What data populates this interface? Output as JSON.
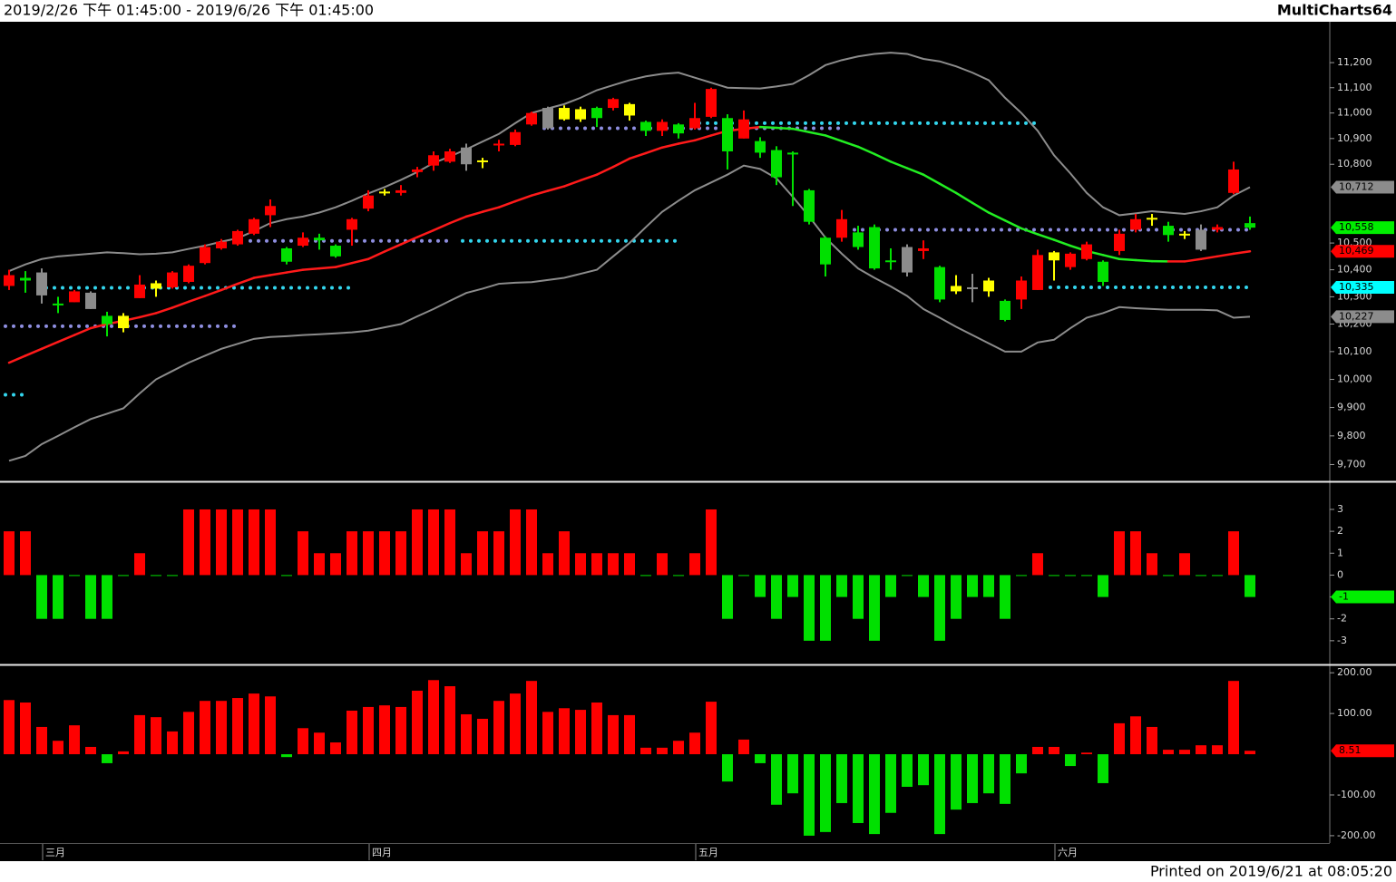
{
  "header": {
    "range": "2019/2/26 下午 01:45:00 - 2019/6/26 下午 01:45:00",
    "brand": "MultiCharts64"
  },
  "footer": "Printed on 2019/6/21 at 08:05:20",
  "chart_data": [
    {
      "type": "candlestick",
      "log_scale": true,
      "categories": [
        null,
        null,
        "三月",
        null,
        null,
        null,
        null,
        null,
        null,
        null,
        null,
        null,
        null,
        null,
        null,
        null,
        null,
        null,
        null,
        null,
        null,
        null,
        "四月",
        null,
        null,
        null,
        null,
        null,
        null,
        null,
        null,
        null,
        null,
        null,
        null,
        null,
        null,
        null,
        null,
        null,
        null,
        null,
        "五月",
        null,
        null,
        null,
        null,
        null,
        null,
        null,
        null,
        null,
        null,
        null,
        null,
        null,
        null,
        null,
        null,
        null,
        null,
        null,
        null,
        null,
        "六月",
        null,
        null,
        null,
        null,
        null,
        null,
        null,
        null,
        null,
        null,
        null,
        null
      ],
      "open": [
        10340,
        10370,
        10390,
        10270,
        10280,
        10315,
        10230,
        10185,
        10295,
        10330,
        10335,
        10355,
        10425,
        10480,
        10495,
        10535,
        10605,
        10480,
        10490,
        10520,
        10490,
        10550,
        10630,
        10690,
        10690,
        10770,
        10795,
        10810,
        10865,
        10810,
        10875,
        10875,
        10955,
        11020,
        10975,
        10975,
        11020,
        11020,
        10990,
        10965,
        10930,
        10955,
        10940,
        10985,
        10980,
        10900,
        10890,
        10855,
        10845,
        10700,
        10520,
        10520,
        10540,
        10560,
        10435,
        10390,
        10470,
        10410,
        10320,
        10335,
        10320,
        10285,
        10290,
        10325,
        10435,
        10410,
        10440,
        10430,
        10470,
        10550,
        10590,
        10565,
        10530,
        10550,
        10550,
        10690,
        10575
      ],
      "high": [
        10400,
        10395,
        10405,
        10300,
        10325,
        10320,
        10245,
        10240,
        10380,
        10360,
        10395,
        10420,
        10495,
        10515,
        10550,
        10595,
        10665,
        10485,
        10540,
        10535,
        10495,
        10595,
        10700,
        10705,
        10720,
        10790,
        10850,
        10860,
        10880,
        10825,
        10895,
        10935,
        11005,
        11025,
        11030,
        11025,
        11025,
        11060,
        11040,
        10970,
        10975,
        10960,
        11040,
        11100,
        10995,
        11010,
        10905,
        10870,
        10850,
        10705,
        10525,
        10625,
        10565,
        10570,
        10480,
        10495,
        10510,
        10415,
        10380,
        10385,
        10370,
        10290,
        10375,
        10475,
        10470,
        10465,
        10505,
        10435,
        10550,
        10610,
        10610,
        10580,
        10545,
        10570,
        10570,
        10810,
        10600
      ],
      "low": [
        10325,
        10315,
        10275,
        10240,
        10280,
        10255,
        10155,
        10170,
        10295,
        10300,
        10330,
        10350,
        10420,
        10475,
        10490,
        10530,
        10560,
        10420,
        10485,
        10475,
        10445,
        10490,
        10620,
        10680,
        10680,
        10750,
        10775,
        10805,
        10775,
        10785,
        10850,
        10870,
        10950,
        10935,
        10970,
        10965,
        10945,
        11010,
        10970,
        10910,
        10910,
        10900,
        10935,
        10980,
        10780,
        10900,
        10825,
        10720,
        10640,
        10570,
        10375,
        10505,
        10475,
        10400,
        10400,
        10375,
        10440,
        10280,
        10310,
        10280,
        10300,
        10210,
        10255,
        10325,
        10360,
        10400,
        10435,
        10340,
        10455,
        10540,
        10565,
        10505,
        10515,
        10470,
        10540,
        10685,
        10550
      ],
      "close": [
        10380,
        10360,
        10305,
        10275,
        10320,
        10255,
        10200,
        10230,
        10345,
        10350,
        10390,
        10415,
        10485,
        10505,
        10545,
        10590,
        10640,
        10430,
        10520,
        10510,
        10450,
        10590,
        10680,
        10695,
        10700,
        10780,
        10835,
        10850,
        10800,
        10815,
        10880,
        10925,
        11000,
        10940,
        11020,
        11015,
        10980,
        11055,
        11035,
        10930,
        10965,
        10920,
        10980,
        11095,
        10850,
        10975,
        10845,
        10750,
        10840,
        10580,
        10420,
        10590,
        10485,
        10405,
        10430,
        10485,
        10480,
        10290,
        10340,
        10330,
        10360,
        10215,
        10360,
        10455,
        10465,
        10460,
        10495,
        10355,
        10535,
        10590,
        10595,
        10530,
        10535,
        10475,
        10560,
        10780,
        10558
      ],
      "colors": [
        "#ff0000",
        "#00e000",
        "#8c8c8c",
        "#00e000",
        "#ff0000",
        "#8c8c8c",
        "#00e000",
        "#ffff00",
        "#ff0000",
        "#ffff00",
        "#ff0000",
        "#ff0000",
        "#ff0000",
        "#ff0000",
        "#ff0000",
        "#ff0000",
        "#ff0000",
        "#00e000",
        "#ff0000",
        "#00e000",
        "#00e000",
        "#ff0000",
        "#ff0000",
        "#ffff00",
        "#ff0000",
        "#ff0000",
        "#ff0000",
        "#ff0000",
        "#8c8c8c",
        "#ffff00",
        "#ff0000",
        "#ff0000",
        "#ff0000",
        "#8c8c8c",
        "#ffff00",
        "#ffff00",
        "#00e000",
        "#ff0000",
        "#ffff00",
        "#00e000",
        "#ff0000",
        "#00e000",
        "#ff0000",
        "#ff0000",
        "#00e000",
        "#ff0000",
        "#00e000",
        "#00e000",
        "#00e000",
        "#00e000",
        "#00e000",
        "#ff0000",
        "#00e000",
        "#00e000",
        "#00e000",
        "#8c8c8c",
        "#ff0000",
        "#00e000",
        "#ffff00",
        "#8c8c8c",
        "#ffff00",
        "#00e000",
        "#ff0000",
        "#ff0000",
        "#ffff00",
        "#ff0000",
        "#ff0000",
        "#00e000",
        "#ff0000",
        "#ff0000",
        "#ffff00",
        "#00e000",
        "#ffff00",
        "#8c8c8c",
        "#ff0000",
        "#ff0000",
        "#00e000"
      ],
      "lines": [
        {
          "color": "#8c8c8c",
          "values": [
            10395,
            10420,
            10440,
            10450,
            10455,
            10460,
            10465,
            10462,
            10458,
            10460,
            10465,
            10478,
            10490,
            10505,
            10518,
            10545,
            10575,
            10590,
            10600,
            10615,
            10635,
            10660,
            10688,
            10712,
            10740,
            10770,
            10805,
            10830,
            10858,
            10888,
            10918,
            10960,
            11000,
            11018,
            11035,
            11060,
            11090,
            11110,
            11130,
            11145,
            11155,
            11160,
            11140,
            11120,
            11100,
            11098,
            11097,
            11105,
            11115,
            11150,
            11190,
            11210,
            11225,
            11235,
            11240,
            11235,
            11215,
            11205,
            11185,
            11160,
            11130,
            11060,
            11000,
            10930,
            10835,
            10765,
            10690,
            10635,
            10605,
            10612,
            10620,
            10615,
            10610,
            10620,
            10635,
            10680,
            10712
          ]
        },
        {
          "color": "#8c8c8c",
          "values": [
            9713,
            9730,
            9771,
            9800,
            9830,
            9859,
            9878,
            9897,
            9950,
            10000,
            10030,
            10060,
            10085,
            10110,
            10128,
            10146,
            10153,
            10156,
            10160,
            10163,
            10166,
            10170,
            10176,
            10188,
            10200,
            10228,
            10255,
            10285,
            10314,
            10330,
            10348,
            10352,
            10354,
            10362,
            10370,
            10385,
            10400,
            10450,
            10500,
            10560,
            10618,
            10660,
            10700,
            10730,
            10760,
            10795,
            10782,
            10746,
            10675,
            10600,
            10520,
            10460,
            10405,
            10370,
            10338,
            10303,
            10255,
            10223,
            10190,
            10160,
            10130,
            10100,
            10100,
            10133,
            10143,
            10185,
            10223,
            10240,
            10262,
            10258,
            10255,
            10252,
            10252,
            10252,
            10250,
            10223,
            10227
          ]
        }
      ],
      "mid": {
        "up_color": "#ff1a1a",
        "down_color": "#22ee22",
        "values": [
          10060,
          10085,
          10110,
          10135,
          10160,
          10185,
          10200,
          10212,
          10225,
          10240,
          10260,
          10282,
          10303,
          10325,
          10348,
          10370,
          10380,
          10390,
          10400,
          10405,
          10410,
          10425,
          10440,
          10468,
          10495,
          10522,
          10548,
          10575,
          10600,
          10618,
          10635,
          10658,
          10680,
          10698,
          10715,
          10738,
          10760,
          10790,
          10822,
          10843,
          10865,
          10880,
          10893,
          10912,
          10930,
          10938,
          10945,
          10942,
          10938,
          10925,
          10912,
          10890,
          10868,
          10840,
          10810,
          10785,
          10760,
          10725,
          10690,
          10652,
          10615,
          10585,
          10555,
          10533,
          10512,
          10490,
          10470,
          10455,
          10440,
          10436,
          10432,
          10431,
          10431,
          10440,
          10450,
          10460,
          10469
        ]
      },
      "levels": [
        {
          "color": "#33d6ee",
          "value": 9945,
          "start": 0,
          "end": 1
        },
        {
          "color": "#8e8ee0",
          "value": 10192,
          "start": 0,
          "end": 14
        },
        {
          "color": "#33d6ee",
          "value": 10333,
          "start": 2,
          "end": 21
        },
        {
          "color": "#8e8ee0",
          "value": 10508,
          "start": 15,
          "end": 27
        },
        {
          "color": "#33d6ee",
          "value": 10508,
          "start": 28,
          "end": 41
        },
        {
          "color": "#8e8ee0",
          "value": 10940,
          "start": 33,
          "end": 51
        },
        {
          "color": "#33d6ee",
          "value": 10960,
          "start": 42,
          "end": 63
        },
        {
          "color": "#8e8ee0",
          "value": 10550,
          "start": 52,
          "end": 76
        },
        {
          "color": "#33d6ee",
          "value": 10335,
          "start": 64,
          "end": 76
        }
      ],
      "ylim": [
        9645,
        11365
      ],
      "yticks": [
        {
          "value": 11200,
          "label": "11,200"
        },
        {
          "value": 11100,
          "label": "11,100"
        },
        {
          "value": 11000,
          "label": "11,000"
        },
        {
          "value": 10900,
          "label": "10,900"
        },
        {
          "value": 10800,
          "label": "10,800"
        },
        {
          "value": 10500,
          "label": "10,500"
        },
        {
          "value": 10400,
          "label": "10,400"
        },
        {
          "value": 10300,
          "label": "10,300"
        },
        {
          "value": 10200,
          "label": "10,200"
        },
        {
          "value": 10100,
          "label": "10,100"
        },
        {
          "value": 10000,
          "label": "10,000"
        },
        {
          "value": 9900,
          "label": "9,900"
        },
        {
          "value": 9800,
          "label": "9,800"
        },
        {
          "value": 9700,
          "label": "9,700"
        }
      ],
      "markers": [
        {
          "value": 10712,
          "label": "10,712",
          "color": "#8c8c8c"
        },
        {
          "value": 10558,
          "label": "10,558",
          "color": "#00ee00"
        },
        {
          "value": 10469,
          "label": "10,469",
          "color": "#ff0000"
        },
        {
          "value": 10335,
          "label": "10,335",
          "color": "#00ffff"
        },
        {
          "value": 10227,
          "label": "10,227",
          "color": "#8c8c8c"
        }
      ]
    },
    {
      "type": "bar",
      "pos_color": "#ff0000",
      "neg_color": "#00e000",
      "values": [
        2,
        2,
        -2,
        -2,
        0,
        -2,
        -2,
        0,
        1,
        0,
        0,
        3,
        3,
        3,
        3,
        3,
        3,
        0,
        2,
        1,
        1,
        2,
        2,
        2,
        2,
        3,
        3,
        3,
        1,
        2,
        2,
        3,
        3,
        1,
        2,
        1,
        1,
        1,
        1,
        0,
        1,
        0,
        1,
        3,
        -2,
        0,
        -1,
        -2,
        -1,
        -3,
        -3,
        -1,
        -2,
        -3,
        -1,
        0,
        -1,
        -3,
        -2,
        -1,
        -1,
        -2,
        0,
        1,
        0,
        0,
        0,
        -1,
        2,
        2,
        1,
        0,
        1,
        0,
        0,
        2,
        -1
      ],
      "ylim": [
        -4,
        4.2
      ],
      "yticks": [
        3,
        2,
        1,
        0,
        -1,
        -2,
        -3
      ],
      "markers": [
        {
          "value": -1,
          "color": "#00ee00"
        }
      ]
    },
    {
      "type": "bar",
      "pos_color": "#ff0000",
      "neg_color": "#00e000",
      "values": [
        133,
        127,
        67,
        33,
        71,
        18,
        -22,
        7,
        96,
        91,
        56,
        104,
        131,
        131,
        138,
        149,
        142,
        -7,
        64,
        53,
        29,
        107,
        116,
        120,
        116,
        156,
        182,
        167,
        98,
        87,
        131,
        149,
        180,
        104,
        113,
        109,
        127,
        96,
        96,
        16,
        16,
        33,
        53,
        129,
        -67,
        36,
        -22,
        -124,
        -96,
        -200,
        -191,
        -120,
        -169,
        -196,
        -144,
        -80,
        -76,
        -196,
        -136,
        -120,
        -96,
        -122,
        -47,
        18,
        18,
        -29,
        4,
        -71,
        76,
        93,
        67,
        11,
        11,
        22,
        22,
        180,
        8.51
      ],
      "ylim": [
        -218,
        216
      ],
      "yticks": [
        {
          "value": 200,
          "label": "200.00"
        },
        {
          "value": 100,
          "label": "100.00"
        },
        {
          "value": -100,
          "label": "-100.00"
        },
        {
          "value": -200,
          "label": "-200.00"
        }
      ],
      "markers": [
        {
          "value": 8.51,
          "color": "#ff0000"
        }
      ]
    }
  ]
}
